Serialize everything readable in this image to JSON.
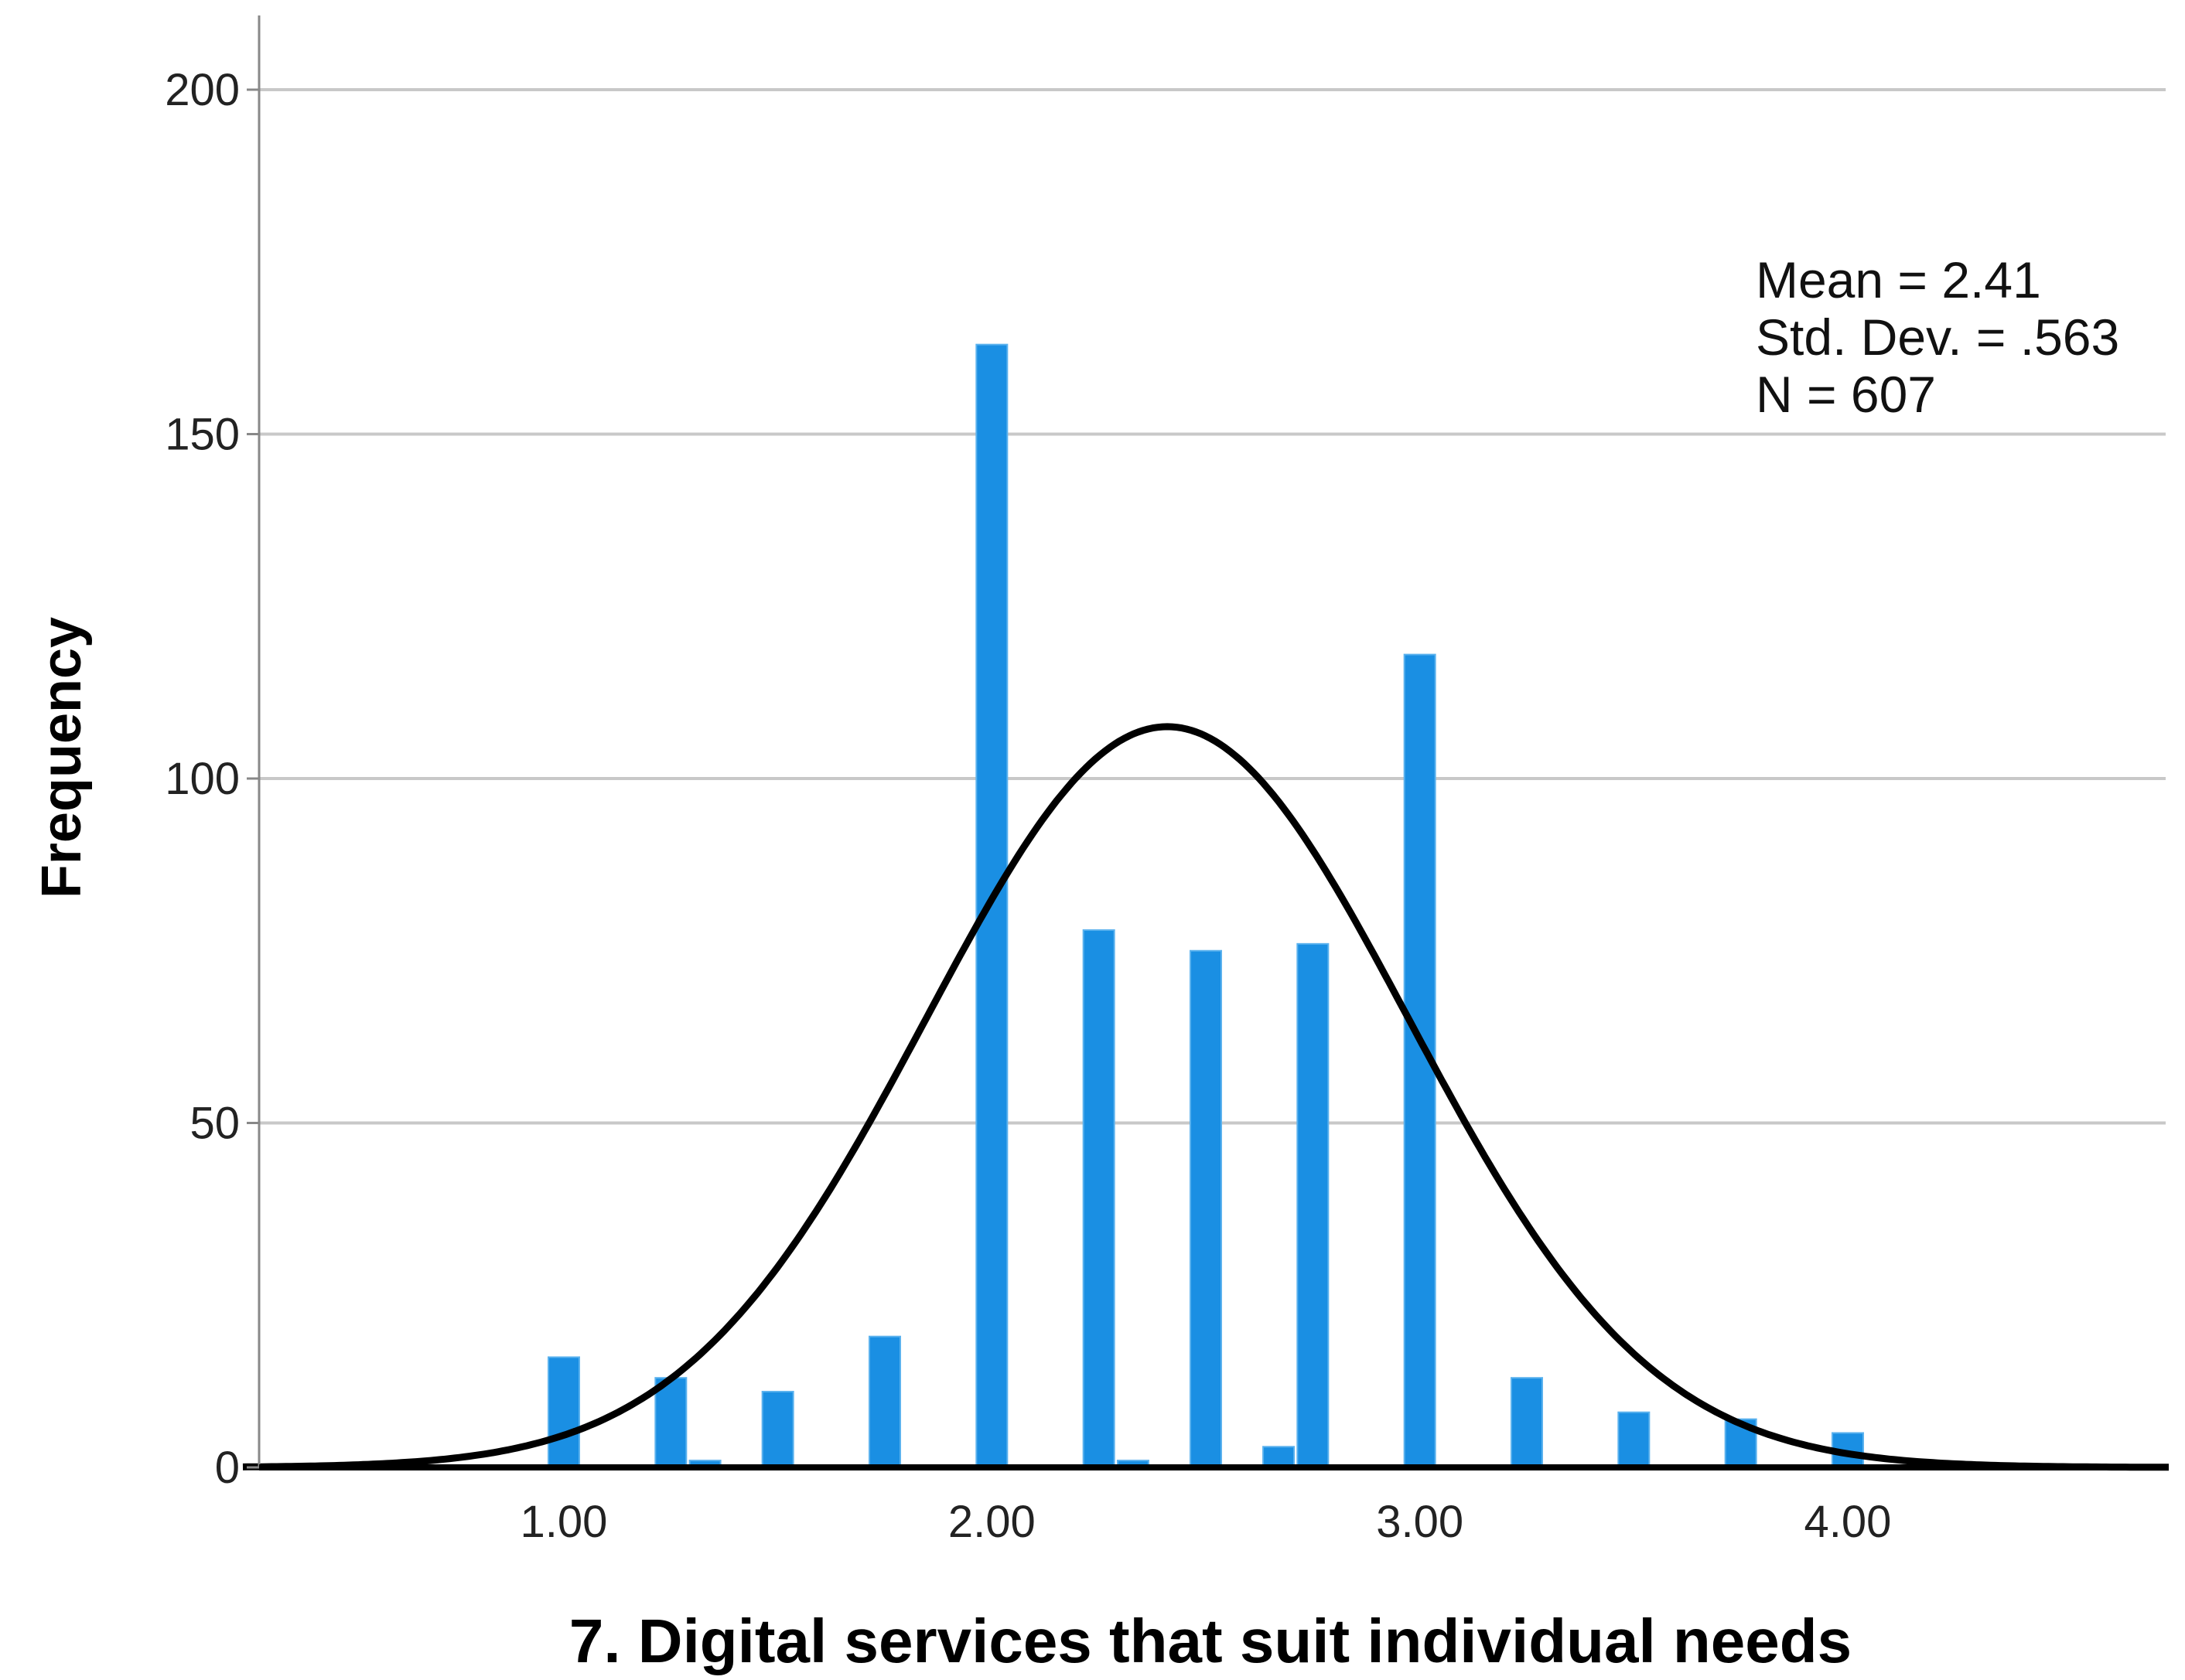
{
  "chart_data": {
    "type": "bar",
    "xlabel": "7. Digital services that suit individual needs",
    "ylabel": "Frequency",
    "xlim": [
      0.25,
      4.75
    ],
    "ylim": [
      0,
      210
    ],
    "grid": true,
    "bar_color": "#1a8fe3",
    "curve_color": "#000000",
    "x_ticks": [
      {
        "value": 1.0,
        "label": "1.00"
      },
      {
        "value": 2.0,
        "label": "2.00"
      },
      {
        "value": 3.0,
        "label": "3.00"
      },
      {
        "value": 4.0,
        "label": "4.00"
      }
    ],
    "y_ticks": [
      {
        "value": 0,
        "label": "0"
      },
      {
        "value": 50,
        "label": "50"
      },
      {
        "value": 100,
        "label": "100"
      },
      {
        "value": 150,
        "label": "150"
      },
      {
        "value": 200,
        "label": "200"
      }
    ],
    "bins": [
      {
        "x": 1.0,
        "count": 16
      },
      {
        "x": 1.25,
        "count": 13
      },
      {
        "x": 1.33,
        "count": 1
      },
      {
        "x": 1.5,
        "count": 11
      },
      {
        "x": 1.75,
        "count": 19
      },
      {
        "x": 2.0,
        "count": 163
      },
      {
        "x": 2.25,
        "count": 78
      },
      {
        "x": 2.33,
        "count": 1
      },
      {
        "x": 2.5,
        "count": 75
      },
      {
        "x": 2.67,
        "count": 3
      },
      {
        "x": 2.75,
        "count": 76
      },
      {
        "x": 3.0,
        "count": 118
      },
      {
        "x": 3.25,
        "count": 13
      },
      {
        "x": 3.5,
        "count": 8
      },
      {
        "x": 3.75,
        "count": 7
      },
      {
        "x": 4.0,
        "count": 5
      }
    ],
    "normal_curve": {
      "mean": 2.41,
      "std": 0.563,
      "n": 607
    },
    "stats_lines": [
      "Mean = 2.41",
      "Std. Dev. = .563",
      "N = 607"
    ]
  }
}
